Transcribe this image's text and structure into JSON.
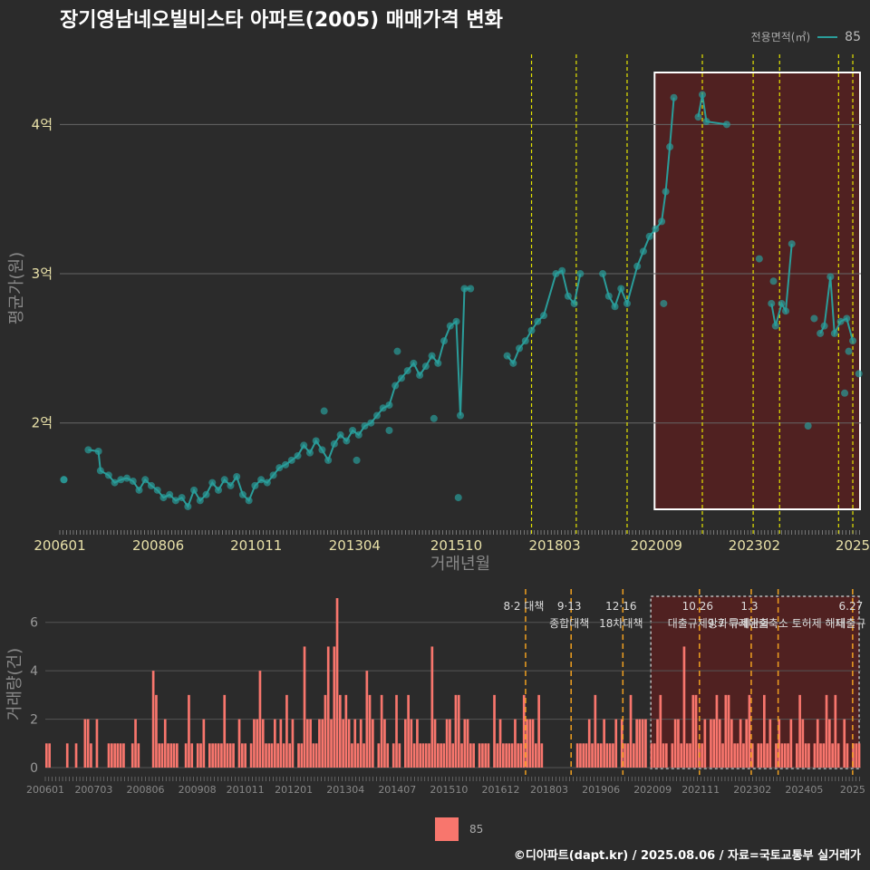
{
  "header": {
    "title": "장기영남네오빌비스타 아파트(2005) 매매가격 변화",
    "legend_label": "전용면적(㎡)",
    "legend_value": "85"
  },
  "footer": {
    "text": "©디아파트(dapt.kr) / 2025.08.06 / 자료=국토교통부 실거래가"
  },
  "bottom_legend": {
    "label": "85"
  },
  "colors": {
    "line": "#2a9d9a",
    "bar": "#f8766d",
    "highlight": "#5a1f1f",
    "policy": "#e6e600"
  },
  "chart_data": [
    {
      "type": "line",
      "title": "장기영남네오빌비스타 아파트(2005) 매매가격 변화",
      "xlabel": "거래년월",
      "ylabel": "평균가(원)",
      "x_range": [
        2006.0,
        2025.7
      ],
      "ylim": [
        1.3,
        4.5
      ],
      "x_ticks": [
        {
          "v": 2006.0,
          "label": "200601"
        },
        {
          "v": 2008.42,
          "label": "200806"
        },
        {
          "v": 2010.83,
          "label": "201011"
        },
        {
          "v": 2013.25,
          "label": "201304"
        },
        {
          "v": 2015.75,
          "label": "201510"
        },
        {
          "v": 2018.17,
          "label": "201803"
        },
        {
          "v": 2020.67,
          "label": "202009"
        },
        {
          "v": 2023.08,
          "label": "202302"
        },
        {
          "v": 2025.5,
          "label": "2025"
        }
      ],
      "y_ticks": [
        {
          "v": 2,
          "label": "2억"
        },
        {
          "v": 3,
          "label": "3억"
        },
        {
          "v": 4,
          "label": "4억"
        }
      ],
      "policy_lines": [
        2017.6,
        2018.7,
        2019.95,
        2021.8,
        2023.05,
        2023.7,
        2025.15,
        2025.5
      ],
      "highlight_range": [
        2020.67,
        2025.7
      ],
      "series": [
        {
          "name": "85",
          "points": [
            [
              2006.1,
              1.62
            ],
            [
              2006.7,
              1.82
            ],
            [
              2006.95,
              1.81
            ],
            [
              2007.0,
              1.68
            ],
            [
              2007.2,
              1.65
            ],
            [
              2007.35,
              1.6
            ],
            [
              2007.5,
              1.62
            ],
            [
              2007.65,
              1.63
            ],
            [
              2007.8,
              1.61
            ],
            [
              2007.95,
              1.55
            ],
            [
              2008.1,
              1.62
            ],
            [
              2008.25,
              1.58
            ],
            [
              2008.4,
              1.55
            ],
            [
              2008.55,
              1.5
            ],
            [
              2008.7,
              1.52
            ],
            [
              2008.85,
              1.48
            ],
            [
              2009.0,
              1.5
            ],
            [
              2009.15,
              1.44
            ],
            [
              2009.3,
              1.55
            ],
            [
              2009.45,
              1.48
            ],
            [
              2009.6,
              1.52
            ],
            [
              2009.75,
              1.6
            ],
            [
              2009.9,
              1.55
            ],
            [
              2010.05,
              1.62
            ],
            [
              2010.2,
              1.58
            ],
            [
              2010.35,
              1.64
            ],
            [
              2010.5,
              1.52
            ],
            [
              2010.65,
              1.48
            ],
            [
              2010.8,
              1.58
            ],
            [
              2010.95,
              1.62
            ],
            [
              2011.1,
              1.6
            ],
            [
              2011.25,
              1.65
            ],
            [
              2011.4,
              1.7
            ],
            [
              2011.55,
              1.72
            ],
            [
              2011.7,
              1.75
            ],
            [
              2011.85,
              1.78
            ],
            [
              2012.0,
              1.85
            ],
            [
              2012.15,
              1.8
            ],
            [
              2012.3,
              1.88
            ],
            [
              2012.45,
              1.82
            ],
            [
              2012.6,
              1.75
            ],
            [
              2012.75,
              1.86
            ],
            [
              2012.9,
              1.92
            ],
            [
              2013.05,
              1.88
            ],
            [
              2013.2,
              1.95
            ],
            [
              2013.35,
              1.92
            ],
            [
              2013.5,
              1.98
            ],
            [
              2013.65,
              2.0
            ],
            [
              2013.8,
              2.05
            ],
            [
              2013.95,
              2.1
            ],
            [
              2014.1,
              2.12
            ],
            [
              2014.25,
              2.25
            ],
            [
              2014.4,
              2.3
            ],
            [
              2014.55,
              2.35
            ],
            [
              2014.7,
              2.4
            ],
            [
              2014.85,
              2.32
            ],
            [
              2015.0,
              2.38
            ],
            [
              2015.15,
              2.45
            ],
            [
              2015.3,
              2.4
            ],
            [
              2015.45,
              2.55
            ],
            [
              2015.6,
              2.65
            ],
            [
              2015.75,
              2.68
            ],
            [
              2015.85,
              2.05
            ],
            [
              2015.95,
              2.9
            ],
            [
              2016.1,
              2.9
            ],
            [
              2017.0,
              2.45
            ],
            [
              2017.15,
              2.4
            ],
            [
              2017.3,
              2.5
            ],
            [
              2017.45,
              2.55
            ],
            [
              2017.6,
              2.62
            ],
            [
              2017.75,
              2.68
            ],
            [
              2017.9,
              2.72
            ],
            [
              2018.2,
              3.0
            ],
            [
              2018.35,
              3.02
            ],
            [
              2018.5,
              2.85
            ],
            [
              2018.65,
              2.8
            ],
            [
              2018.8,
              3.0
            ],
            [
              2019.35,
              3.0
            ],
            [
              2019.5,
              2.85
            ],
            [
              2019.65,
              2.78
            ],
            [
              2019.8,
              2.9
            ],
            [
              2019.95,
              2.8
            ],
            [
              2020.2,
              3.05
            ],
            [
              2020.35,
              3.15
            ],
            [
              2020.5,
              3.25
            ],
            [
              2020.65,
              3.3
            ],
            [
              2020.8,
              3.35
            ],
            [
              2020.9,
              3.55
            ],
            [
              2021.0,
              3.85
            ],
            [
              2021.1,
              4.18
            ],
            [
              2021.7,
              4.05
            ],
            [
              2021.8,
              4.2
            ],
            [
              2021.9,
              4.02
            ],
            [
              2022.4,
              4.0
            ],
            [
              2023.5,
              2.8
            ],
            [
              2023.6,
              2.65
            ],
            [
              2023.75,
              2.8
            ],
            [
              2023.85,
              2.75
            ],
            [
              2024.0,
              3.2
            ],
            [
              2024.7,
              2.6
            ],
            [
              2024.8,
              2.65
            ],
            [
              2024.95,
              2.98
            ],
            [
              2025.05,
              2.6
            ],
            [
              2025.2,
              2.68
            ],
            [
              2025.35,
              2.7
            ],
            [
              2025.5,
              2.55
            ]
          ],
          "outliers": [
            [
              2006.1,
              1.62
            ],
            [
              2015.8,
              1.5
            ],
            [
              2015.2,
              2.03
            ],
            [
              2023.2,
              3.1
            ],
            [
              2023.55,
              2.95
            ],
            [
              2024.4,
              1.98
            ],
            [
              2024.55,
              2.7
            ],
            [
              2025.4,
              2.48
            ],
            [
              2025.3,
              2.2
            ],
            [
              2025.65,
              2.33
            ],
            [
              2020.85,
              2.8
            ],
            [
              2012.5,
              2.08
            ],
            [
              2013.3,
              1.75
            ],
            [
              2014.1,
              1.95
            ],
            [
              2014.3,
              2.48
            ]
          ]
        }
      ]
    },
    {
      "type": "bar",
      "xlabel": "",
      "ylabel": "거래량(건)",
      "x_range": [
        2006.0,
        2025.7
      ],
      "ylim": [
        0,
        7
      ],
      "y_ticks": [
        0,
        2,
        4,
        6
      ],
      "x_ticks": [
        {
          "v": 2006.0,
          "label": "200601"
        },
        {
          "v": 2007.17,
          "label": "200703"
        },
        {
          "v": 2008.42,
          "label": "200806"
        },
        {
          "v": 2009.67,
          "label": "200908"
        },
        {
          "v": 2010.83,
          "label": "201011"
        },
        {
          "v": 2012.0,
          "label": "201201"
        },
        {
          "v": 2013.25,
          "label": "201304"
        },
        {
          "v": 2014.5,
          "label": "201407"
        },
        {
          "v": 2015.75,
          "label": "201510"
        },
        {
          "v": 2017.0,
          "label": "201612"
        },
        {
          "v": 2018.17,
          "label": "201803"
        },
        {
          "v": 2019.42,
          "label": "201906"
        },
        {
          "v": 2020.67,
          "label": "202009"
        },
        {
          "v": 2021.83,
          "label": "202111"
        },
        {
          "v": 2023.08,
          "label": "202302"
        },
        {
          "v": 2024.33,
          "label": "202405"
        },
        {
          "v": 2025.5,
          "label": "2025"
        }
      ],
      "policy_lines": [
        {
          "x": 2017.6,
          "label1": "8·2 대책",
          "label2": ""
        },
        {
          "x": 2018.7,
          "label1": "9·13",
          "label2": "종합대책"
        },
        {
          "x": 2019.95,
          "label1": "12·16",
          "label2": "18차대책"
        },
        {
          "x": 2021.8,
          "label1": "10.26",
          "label2": "대출규제강화"
        },
        {
          "x": 2023.05,
          "label1": "1.3",
          "label2": "규제완화"
        },
        {
          "x": 2023.7,
          "label1": "",
          "label2": "9.7 특례대출축소 토허제 해제"
        },
        {
          "x": 2025.5,
          "label1": "6.27",
          "label2": "대출규"
        }
      ],
      "highlight_range": [
        2020.67,
        2025.7
      ],
      "values": [
        1,
        1,
        0,
        0,
        0,
        0,
        0,
        1,
        0,
        0,
        1,
        0,
        0,
        2,
        2,
        1,
        0,
        2,
        0,
        0,
        0,
        1,
        1,
        1,
        1,
        1,
        1,
        0,
        0,
        1,
        2,
        1,
        0,
        0,
        0,
        0,
        4,
        3,
        1,
        1,
        2,
        1,
        1,
        1,
        1,
        0,
        0,
        1,
        3,
        1,
        0,
        1,
        1,
        2,
        0,
        1,
        1,
        1,
        1,
        1,
        3,
        1,
        1,
        1,
        0,
        2,
        1,
        1,
        0,
        1,
        2,
        2,
        4,
        2,
        1,
        1,
        1,
        2,
        1,
        2,
        1,
        3,
        1,
        2,
        0,
        1,
        1,
        5,
        2,
        2,
        1,
        1,
        2,
        2,
        3,
        5,
        2,
        5,
        7,
        3,
        2,
        3,
        2,
        1,
        2,
        1,
        2,
        1,
        4,
        3,
        2,
        0,
        1,
        3,
        2,
        1,
        0,
        1,
        3,
        1,
        0,
        2,
        3,
        2,
        1,
        2,
        1,
        1,
        1,
        1,
        5,
        2,
        1,
        1,
        1,
        2,
        2,
        1,
        3,
        3,
        1,
        2,
        2,
        1,
        1,
        0,
        1,
        1,
        1,
        1,
        0,
        3,
        1,
        2,
        1,
        1,
        1,
        1,
        2,
        1,
        1,
        3,
        2,
        2,
        2,
        1,
        3,
        1,
        0,
        0,
        0,
        0,
        0,
        0,
        0,
        0,
        0,
        0,
        0,
        1,
        1,
        1,
        1,
        2,
        1,
        3,
        1,
        1,
        2,
        1,
        1,
        1,
        2,
        0,
        2,
        1,
        1,
        3,
        1,
        2,
        2,
        2,
        2,
        0,
        1,
        1,
        2,
        3,
        1,
        1,
        0,
        1,
        2,
        2,
        1,
        5,
        1,
        1,
        3,
        3,
        1,
        1,
        2,
        0,
        2,
        2,
        3,
        2,
        1,
        3,
        3,
        2,
        1,
        1,
        2,
        1,
        2,
        3,
        1,
        0,
        1,
        1,
        3,
        1,
        2,
        0,
        1,
        2,
        1,
        1,
        1,
        2,
        0,
        1,
        3,
        2,
        1,
        1,
        0,
        1,
        2,
        1,
        1,
        3,
        2,
        1,
        3,
        1,
        0,
        2,
        1,
        0,
        1,
        1,
        1
      ]
    }
  ]
}
